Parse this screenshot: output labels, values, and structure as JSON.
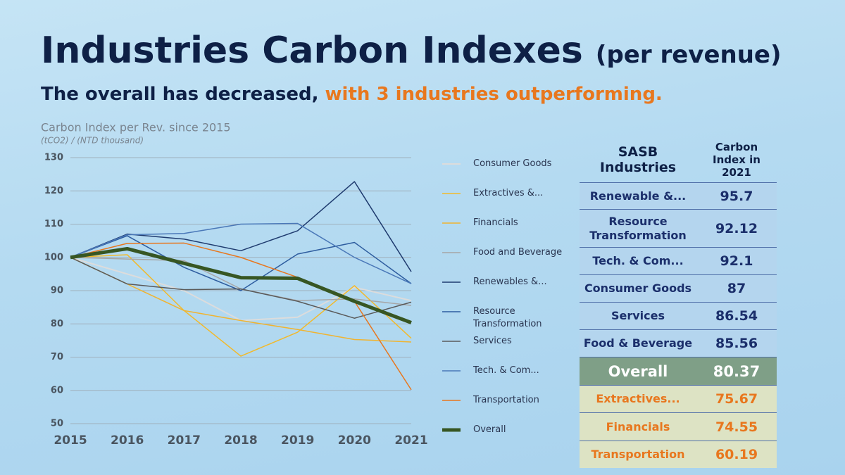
{
  "title": "Industries Carbon Indexes",
  "title_suffix": "(per revenue)",
  "subtitle": [
    "The overall has decreased,",
    "with 3 industries outperforming."
  ],
  "chart_data": {
    "type": "line",
    "title": "Carbon Index per Rev. since 2015",
    "subtitle": "(tCO2) / (NTD thousand)",
    "categories": [
      "2015",
      "2016",
      "2017",
      "2018",
      "2019",
      "2020",
      "2021"
    ],
    "ylim": [
      50,
      130
    ],
    "yticks": [
      50,
      60,
      70,
      80,
      90,
      100,
      110,
      120,
      130
    ],
    "grid": true,
    "series": [
      {
        "name": "Consumer Goods",
        "color": "#dcdcdc",
        "width": 2,
        "values": [
          100,
          95,
          90,
          81,
          82,
          91,
          87
        ]
      },
      {
        "name": "Extractives &...",
        "color": "#f2b92a",
        "width": 1.5,
        "values": [
          100,
          100.8,
          84,
          70.3,
          77.5,
          91.5,
          75.67
        ]
      },
      {
        "name": "Financials",
        "color": "#f0b431",
        "width": 1.5,
        "values": [
          100,
          92,
          84,
          81,
          78.3,
          75.3,
          74.55
        ]
      },
      {
        "name": "Food and Beverage",
        "color": "#a6a6a6",
        "width": 1.5,
        "values": [
          100,
          99.5,
          99,
          90.5,
          87,
          87.5,
          85.56
        ]
      },
      {
        "name": "Renewables &...",
        "color": "#1f3b6f",
        "width": 1.5,
        "values": [
          100,
          107,
          105.5,
          102,
          108,
          122.8,
          95.7
        ]
      },
      {
        "name": "Resource Transformation",
        "color": "#2e5d9f",
        "width": 1.5,
        "values": [
          100,
          106.5,
          97,
          90,
          101,
          104.5,
          92.12
        ]
      },
      {
        "name": "Services",
        "color": "#5a5a5a",
        "width": 1.5,
        "values": [
          100,
          92,
          90.3,
          90.5,
          86.8,
          81.7,
          86.54
        ]
      },
      {
        "name": "Tech. & Com...",
        "color": "#4a78b8",
        "width": 1.5,
        "values": [
          100,
          106.8,
          107.2,
          110,
          110.2,
          100,
          92.1
        ]
      },
      {
        "name": "Transportation",
        "color": "#e8771e",
        "width": 1.5,
        "values": [
          100,
          104.2,
          104.3,
          100,
          94,
          86.8,
          60.19
        ]
      },
      {
        "name": "Overall",
        "color": "#375623",
        "width": 5,
        "values": [
          100,
          102.6,
          98.2,
          93.9,
          93.7,
          86.8,
          80.37
        ]
      }
    ]
  },
  "table": {
    "header": [
      "SASB Industries",
      "Carbon Index in 2021"
    ],
    "rows": [
      [
        "Renewable &...",
        "95.7"
      ],
      [
        "Resource Transformation",
        "92.12"
      ],
      [
        "Tech. & Com...",
        "92.1"
      ],
      [
        "Consumer Goods",
        "87"
      ],
      [
        "Services",
        "86.54"
      ],
      [
        "Food & Beverage",
        "85.56"
      ],
      [
        "Overall",
        "80.37"
      ],
      [
        "Extractives...",
        "75.67"
      ],
      [
        "Financials",
        "74.55"
      ],
      [
        "Transportation",
        "60.19"
      ]
    ]
  }
}
